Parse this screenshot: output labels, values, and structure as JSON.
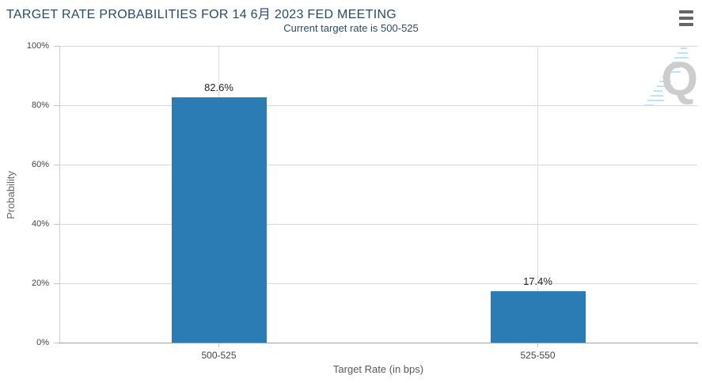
{
  "header": {
    "menu_icon": "hamburger-icon"
  },
  "chart_data": {
    "type": "bar",
    "title": "TARGET RATE PROBABILITIES FOR 14 6月 2023 FED MEETING",
    "subtitle": "Current target rate is 500-525",
    "categories": [
      "500-525",
      "525-550"
    ],
    "values": [
      82.6,
      17.4
    ],
    "value_labels": [
      "82.6%",
      "17.4%"
    ],
    "xlabel": "Target Rate (in bps)",
    "ylabel": "Probability",
    "ylim": [
      0,
      100
    ],
    "yticks": [
      0,
      20,
      40,
      60,
      80,
      100
    ],
    "ytick_labels": [
      "0%",
      "20%",
      "40%",
      "60%",
      "80%",
      "100%"
    ],
    "grid": true,
    "legend": "none",
    "bar_color": "#2b7cb5",
    "watermark_letter": "Q"
  },
  "colors": {
    "bar": "#2b7cb5",
    "title_text": "#274b6d",
    "axis_tick_text": "#444444",
    "axis_title_text": "#666666",
    "gridline": "#d8d8d8",
    "x_axis_line": "#a5a5a5",
    "y_axis_line": "#cccccc",
    "menu_icon": "#666666",
    "watermark_q": "#cdcdcd",
    "watermark_dash": "#bfe3f6"
  }
}
